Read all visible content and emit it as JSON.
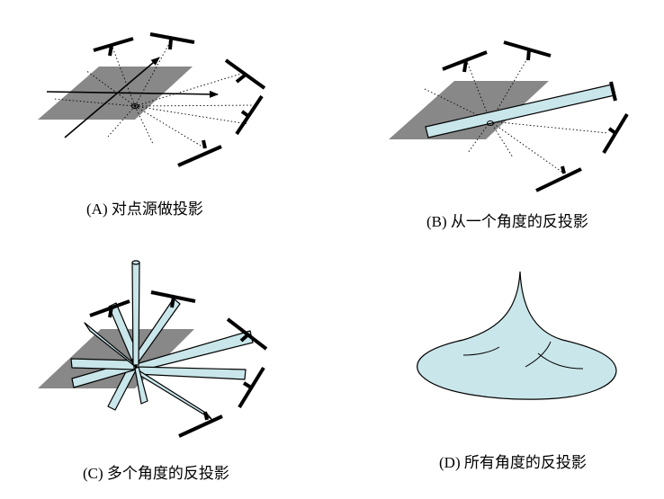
{
  "captions": {
    "a": "(A) 对点源做投影",
    "b": "(B) 从一个角度的反投影",
    "c": "(C) 多个角度的反投影",
    "d": "(D) 所有角度的反投影"
  },
  "colors": {
    "plane": "#888888",
    "bar_fill": "#c9e6ea",
    "detector": "#000000",
    "ray": "#000000"
  }
}
